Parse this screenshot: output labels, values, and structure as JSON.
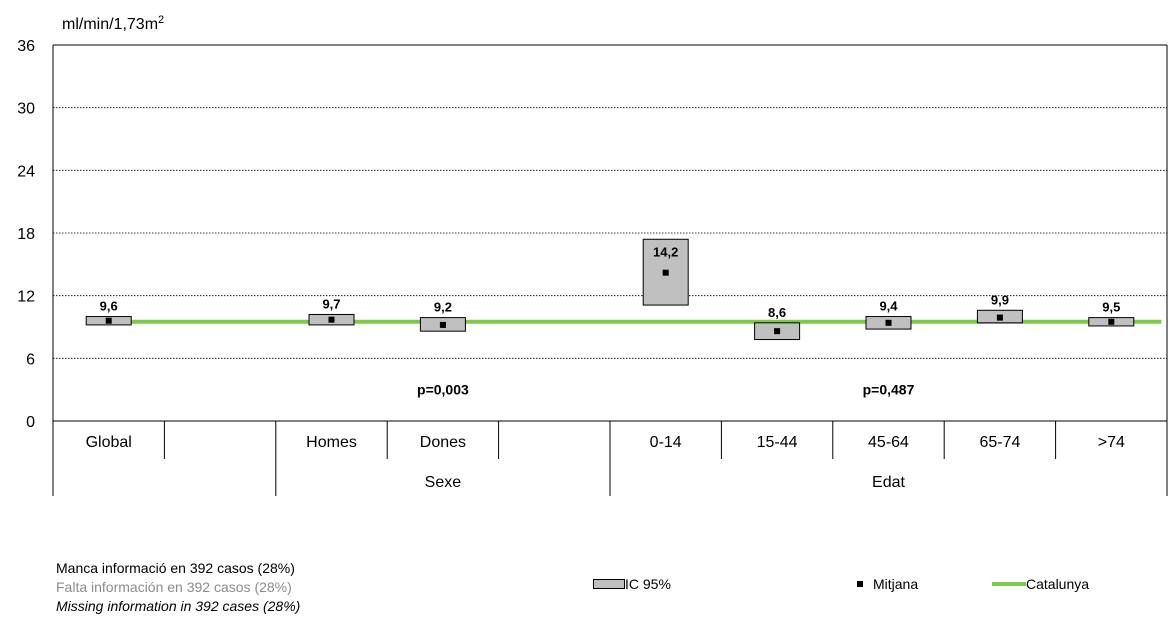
{
  "chart_data": {
    "type": "box",
    "ylabel": "ml/min/1,73m",
    "ylabel_sup": "2",
    "ylim": [
      0,
      36
    ],
    "yticks": [
      "0",
      "6",
      "12",
      "18",
      "24",
      "30",
      "36"
    ],
    "reference_line": {
      "name": "Catalunya",
      "value": 9.5,
      "color": "#7dc94a"
    },
    "groups": [
      {
        "label": "",
        "categories": [
          "Global",
          ""
        ]
      },
      {
        "label": "Sexe",
        "categories": [
          "Homes",
          "Dones",
          ""
        ]
      },
      {
        "label": "Edat",
        "categories": [
          "0-14",
          "15-44",
          "45-64",
          "65-74",
          ">74"
        ]
      }
    ],
    "points": [
      {
        "category": "Global",
        "mean": 9.6,
        "ci_low": 9.2,
        "ci_high": 10.0,
        "label": "9,6"
      },
      {
        "category": "Homes",
        "mean": 9.7,
        "ci_low": 9.2,
        "ci_high": 10.2,
        "label": "9,7"
      },
      {
        "category": "Dones",
        "mean": 9.2,
        "ci_low": 8.6,
        "ci_high": 9.9,
        "label": "9,2"
      },
      {
        "category": "0-14",
        "mean": 14.2,
        "ci_low": 11.1,
        "ci_high": 17.4,
        "label": "14,2"
      },
      {
        "category": "15-44",
        "mean": 8.6,
        "ci_low": 7.8,
        "ci_high": 9.4,
        "label": "8,6"
      },
      {
        "category": "45-64",
        "mean": 9.4,
        "ci_low": 8.8,
        "ci_high": 10.0,
        "label": "9,4"
      },
      {
        "category": "65-74",
        "mean": 9.9,
        "ci_low": 9.4,
        "ci_high": 10.6,
        "label": "9,9"
      },
      {
        "category": ">74",
        "mean": 9.5,
        "ci_low": 9.1,
        "ci_high": 9.9,
        "label": "9,5"
      }
    ],
    "annotations": [
      {
        "text": "p=0,003",
        "group": "Sexe",
        "y": 3
      },
      {
        "text": "p=0,487",
        "group": "Edat",
        "y": 3
      }
    ],
    "grid": true
  },
  "legend": {
    "ci": "IC 95%",
    "mean": "Mitjana",
    "reference": "Catalunya"
  },
  "notes": {
    "ca": "Manca informació en 392 casos (28%)",
    "es": "Falta información en 392 casos (28%)",
    "en": "Missing information in 392 cases (28%)"
  },
  "colors": {
    "ci_fill": "#c0c0c0",
    "reference_line": "#7dc94a",
    "mean_marker": "#000000"
  }
}
